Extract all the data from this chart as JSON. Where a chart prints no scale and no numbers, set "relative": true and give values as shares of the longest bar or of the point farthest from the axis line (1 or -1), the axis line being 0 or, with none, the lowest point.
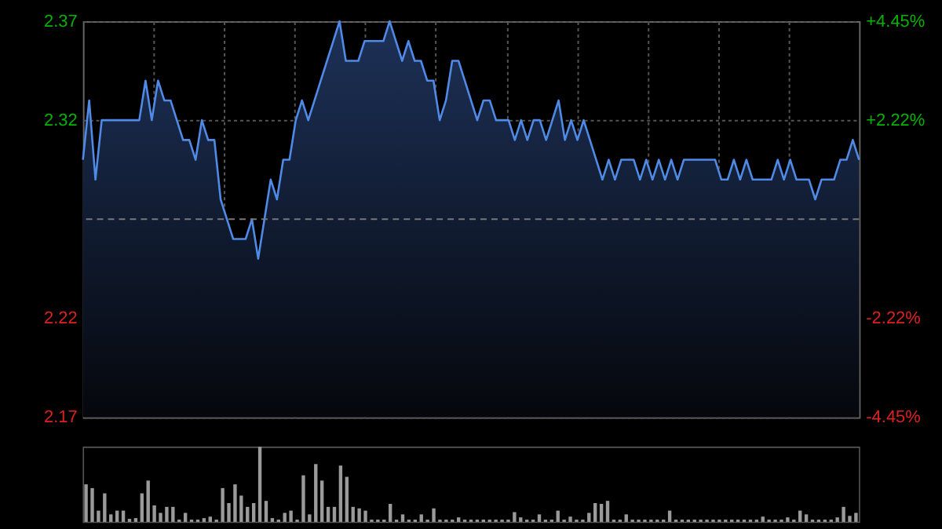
{
  "chart_data": [
    {
      "type": "area",
      "categories": [
        null,
        null,
        null,
        null,
        null,
        null,
        null,
        null,
        null,
        null,
        null,
        null,
        null,
        null,
        null,
        null,
        null,
        null,
        null,
        null,
        null,
        null,
        null,
        null,
        null,
        null,
        null,
        null,
        null,
        null,
        null,
        null,
        null,
        null,
        null,
        null,
        null,
        null,
        null,
        null,
        null,
        null,
        null,
        null,
        null,
        null,
        null,
        null,
        null,
        null,
        null,
        null,
        null,
        null,
        null,
        null,
        null,
        null,
        null,
        null,
        null,
        null,
        null,
        null,
        null,
        null,
        null,
        null,
        null,
        null,
        null,
        null,
        null,
        null,
        null,
        null,
        null,
        null,
        null,
        null,
        null,
        null,
        null,
        null,
        null,
        null,
        null,
        null,
        null,
        null,
        null,
        null,
        null,
        null,
        null,
        null,
        null,
        null,
        null,
        null,
        null,
        null,
        null,
        null,
        null,
        null,
        null,
        null,
        null,
        null,
        null,
        null,
        null,
        null,
        null,
        null,
        null,
        null,
        null,
        null,
        null,
        null,
        null,
        null,
        null
      ],
      "series": [
        {
          "color": "#4f8ae6",
          "values": [
            2.3,
            2.33,
            2.29,
            2.32,
            2.32,
            2.32,
            2.32,
            2.32,
            2.32,
            2.32,
            2.34,
            2.32,
            2.34,
            2.33,
            2.33,
            2.32,
            2.31,
            2.31,
            2.3,
            2.32,
            2.31,
            2.31,
            2.28,
            2.27,
            2.26,
            2.26,
            2.26,
            2.27,
            2.25,
            2.27,
            2.29,
            2.28,
            2.3,
            2.3,
            2.32,
            2.33,
            2.32,
            2.33,
            2.34,
            2.35,
            2.36,
            2.37,
            2.35,
            2.35,
            2.35,
            2.36,
            2.36,
            2.36,
            2.36,
            2.37,
            2.36,
            2.35,
            2.36,
            2.35,
            2.35,
            2.34,
            2.34,
            2.32,
            2.33,
            2.35,
            2.35,
            2.34,
            2.33,
            2.32,
            2.33,
            2.33,
            2.32,
            2.32,
            2.32,
            2.31,
            2.32,
            2.31,
            2.32,
            2.32,
            2.31,
            2.32,
            2.33,
            2.31,
            2.32,
            2.31,
            2.32,
            2.31,
            2.3,
            2.29,
            2.3,
            2.29,
            2.3,
            2.3,
            2.3,
            2.29,
            2.3,
            2.29,
            2.3,
            2.29,
            2.3,
            2.29,
            2.3,
            2.3,
            2.3,
            2.3,
            2.3,
            2.3,
            2.29,
            2.29,
            2.3,
            2.29,
            2.3,
            2.29,
            2.29,
            2.29,
            2.29,
            2.3,
            2.29,
            2.3,
            2.29,
            2.29,
            2.29,
            2.28,
            2.29,
            2.29,
            2.29,
            2.3,
            2.3,
            2.31,
            2.3
          ]
        }
      ],
      "ylim": [
        2.17,
        2.37
      ],
      "yticks": [
        2.37,
        2.32,
        2.22,
        2.17
      ],
      "y2lim": [
        -4.45,
        4.45
      ],
      "y2ticks": [
        {
          "value": 4.45,
          "label": "+4.45%"
        },
        {
          "value": 2.22,
          "label": "+2.22%"
        },
        {
          "value": -2.22,
          "label": "-2.22%"
        },
        {
          "value": -4.45,
          "label": "-4.45%"
        }
      ],
      "ref_lines": [
        {
          "axis": "y",
          "value": 2.27,
          "color": "#777777",
          "line_style": "dashed"
        }
      ],
      "grid": true,
      "tick_labels": "y"
    },
    {
      "type": "bar",
      "relative": true,
      "categories": [
        null,
        null,
        null,
        null,
        null,
        null,
        null,
        null,
        null,
        null,
        null,
        null,
        null,
        null,
        null,
        null,
        null,
        null,
        null,
        null,
        null,
        null,
        null,
        null,
        null,
        null,
        null,
        null,
        null,
        null,
        null,
        null,
        null,
        null,
        null,
        null,
        null,
        null,
        null,
        null,
        null,
        null,
        null,
        null,
        null,
        null,
        null,
        null,
        null,
        null,
        null,
        null,
        null,
        null,
        null,
        null,
        null,
        null,
        null,
        null,
        null,
        null,
        null,
        null,
        null,
        null,
        null,
        null,
        null,
        null,
        null,
        null,
        null,
        null,
        null,
        null,
        null,
        null,
        null,
        null,
        null,
        null,
        null,
        null,
        null,
        null,
        null,
        null,
        null,
        null,
        null,
        null,
        null,
        null,
        null,
        null,
        null,
        null,
        null,
        null,
        null,
        null,
        null,
        null,
        null,
        null,
        null,
        null,
        null,
        null,
        null,
        null,
        null,
        null,
        null,
        null,
        null,
        null,
        null,
        null,
        null,
        null,
        null,
        null,
        null
      ],
      "series": [
        {
          "color": "#9a9a9a",
          "values": [
            0.5,
            0.45,
            0.15,
            0.38,
            0.1,
            0.15,
            0.15,
            0.04,
            0.05,
            0.38,
            0.55,
            0.22,
            0.12,
            0.2,
            0.2,
            0.03,
            0.12,
            0.03,
            0.03,
            0.05,
            0.07,
            0.03,
            0.45,
            0.25,
            0.5,
            0.35,
            0.2,
            0.25,
            1.0,
            0.28,
            0.05,
            0.03,
            0.12,
            0.15,
            0.03,
            0.62,
            0.1,
            0.77,
            0.55,
            0.2,
            0.2,
            0.75,
            0.6,
            0.2,
            0.18,
            0.15,
            0.03,
            0.03,
            0.03,
            0.24,
            0.03,
            0.1,
            0.03,
            0.03,
            0.1,
            0.03,
            0.18,
            0.03,
            0.03,
            0.03,
            0.06,
            0.03,
            0.03,
            0.03,
            0.03,
            0.03,
            0.03,
            0.03,
            0.03,
            0.13,
            0.06,
            0.03,
            0.03,
            0.1,
            0.03,
            0.03,
            0.15,
            0.03,
            0.07,
            0.03,
            0.03,
            0.12,
            0.25,
            0.24,
            0.28,
            0.03,
            0.03,
            0.1,
            0.03,
            0.03,
            0.03,
            0.03,
            0.03,
            0.03,
            0.15,
            0.03,
            0.03,
            0.03,
            0.03,
            0.03,
            0.03,
            0.03,
            0.03,
            0.03,
            0.03,
            0.03,
            0.03,
            0.03,
            0.03,
            0.07,
            0.03,
            0.03,
            0.03,
            0.06,
            0.03,
            0.15,
            0.1,
            0.03,
            0.03,
            0.03,
            0.03,
            0.06,
            0.2,
            0.08,
            0.12
          ]
        }
      ],
      "grid": false
    }
  ]
}
